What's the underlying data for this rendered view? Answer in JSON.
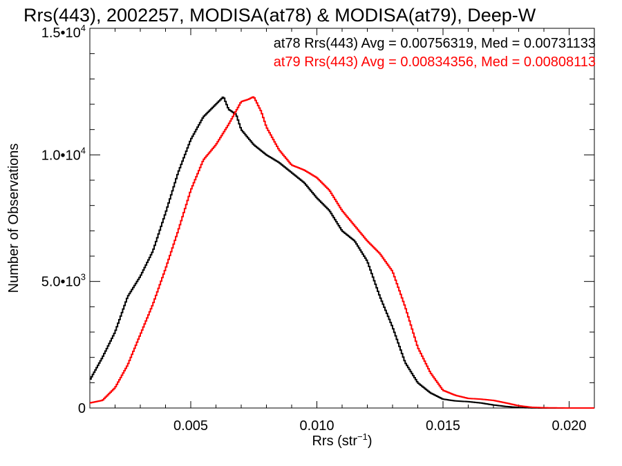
{
  "chart_data": {
    "type": "line",
    "title": "Rrs(443), 2002257, MODISA(at78) & MODISA(at79), Deep-W",
    "xlabel": {
      "base": "Rrs (str",
      "sup": "−1",
      "tail": ")"
    },
    "ylabel": "Number of Observations",
    "xlim": [
      0.001,
      0.021
    ],
    "ylim": [
      0,
      15000
    ],
    "x_ticks": [
      {
        "value": 0.005,
        "label": "0.005"
      },
      {
        "value": 0.01,
        "label": "0.010"
      },
      {
        "value": 0.015,
        "label": "0.015"
      },
      {
        "value": 0.02,
        "label": "0.020"
      }
    ],
    "y_ticks": [
      {
        "value": 0,
        "label": "0",
        "exp": ""
      },
      {
        "value": 5000,
        "label": "5.0•10",
        "exp": "3"
      },
      {
        "value": 10000,
        "label": "1.0•10",
        "exp": "4"
      },
      {
        "value": 15000,
        "label": "1.5•10",
        "exp": "4"
      }
    ],
    "step_style": "histogram",
    "series": [
      {
        "id": "at78",
        "color": "#000000",
        "stat_text": "at78 Rrs(443) Avg = 0.00756319, Med = 0.00731133",
        "x": [
          0.001,
          0.0015,
          0.002,
          0.0025,
          0.003,
          0.0035,
          0.004,
          0.0045,
          0.005,
          0.0055,
          0.006,
          0.0063,
          0.0065,
          0.0068,
          0.007,
          0.0075,
          0.008,
          0.0085,
          0.009,
          0.0095,
          0.01,
          0.0105,
          0.011,
          0.0115,
          0.012,
          0.0125,
          0.013,
          0.0135,
          0.014,
          0.0145,
          0.015,
          0.0155,
          0.016,
          0.0165,
          0.017,
          0.0175,
          0.018,
          0.0185,
          0.019,
          0.02,
          0.021
        ],
        "y": [
          1100,
          2000,
          3000,
          4400,
          5200,
          6200,
          7700,
          9300,
          10600,
          11500,
          12000,
          12300,
          11800,
          11600,
          11000,
          10400,
          10000,
          9700,
          9300,
          8900,
          8300,
          7800,
          7000,
          6600,
          5800,
          4400,
          3200,
          1800,
          1000,
          600,
          350,
          280,
          250,
          200,
          120,
          60,
          20,
          5,
          0,
          0,
          0
        ]
      },
      {
        "id": "at79",
        "color": "#ff0000",
        "stat_text": "at79 Rrs(443) Avg = 0.00834356, Med = 0.00808113",
        "x": [
          0.001,
          0.0015,
          0.002,
          0.0025,
          0.003,
          0.0035,
          0.004,
          0.0045,
          0.005,
          0.0055,
          0.006,
          0.0065,
          0.007,
          0.0073,
          0.0075,
          0.0078,
          0.008,
          0.0085,
          0.009,
          0.0095,
          0.01,
          0.0105,
          0.011,
          0.0115,
          0.012,
          0.0125,
          0.013,
          0.0135,
          0.014,
          0.0145,
          0.015,
          0.0155,
          0.016,
          0.0165,
          0.017,
          0.0175,
          0.018,
          0.0185,
          0.019,
          0.02,
          0.021
        ],
        "y": [
          200,
          300,
          800,
          1700,
          2900,
          4100,
          5500,
          7000,
          8600,
          9800,
          10400,
          11200,
          12100,
          12200,
          12300,
          11700,
          11100,
          10200,
          9600,
          9400,
          9100,
          8600,
          7800,
          7200,
          6600,
          6100,
          5400,
          4000,
          2400,
          1400,
          700,
          500,
          380,
          350,
          300,
          200,
          90,
          30,
          10,
          0,
          0
        ]
      }
    ]
  }
}
